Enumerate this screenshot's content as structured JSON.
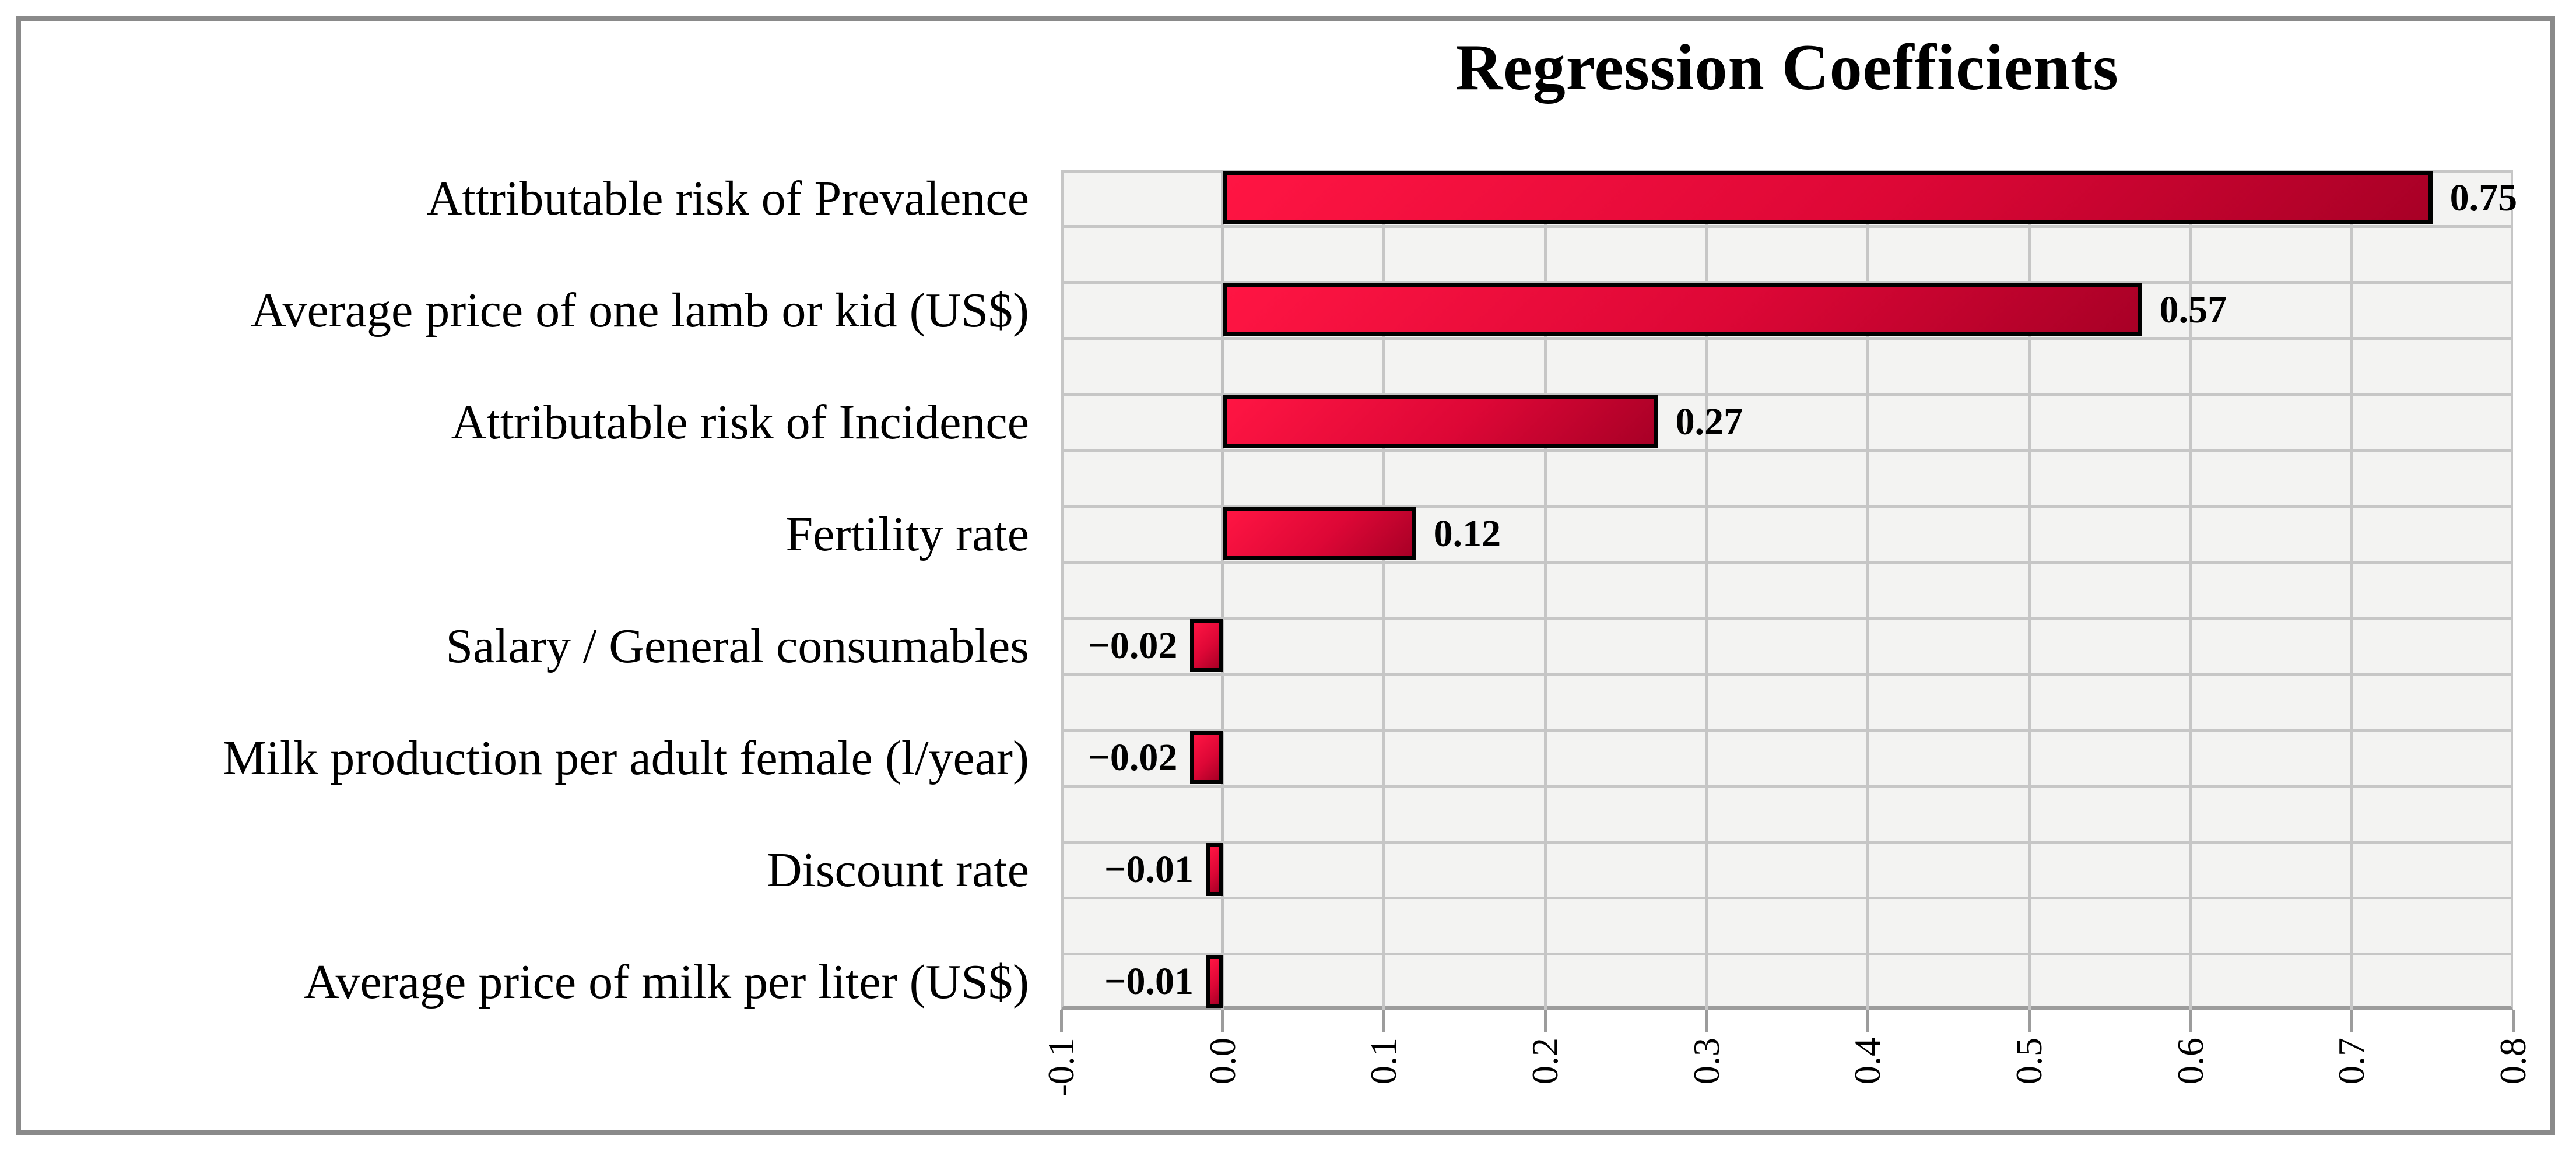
{
  "chart_data": {
    "type": "bar",
    "orientation": "horizontal",
    "title": "Regression Coefficients",
    "categories": [
      "Attributable risk of Prevalence",
      "Average price of one lamb or kid (US$)",
      "Attributable risk of Incidence",
      "Fertility rate",
      "Salary / General consumables",
      "Milk production per adult female (l/year)",
      "Discount rate",
      "Average price of milk per liter (US$)"
    ],
    "values": [
      0.75,
      0.57,
      0.27,
      0.12,
      -0.02,
      -0.02,
      -0.01,
      -0.01
    ],
    "value_labels": [
      "0.75",
      "0.57",
      "0.27",
      "0.12",
      "−0.02",
      "−0.02",
      "−0.01",
      "−0.01"
    ],
    "x_ticks": [
      "-0.1",
      "0.0",
      "0.1",
      "0.2",
      "0.3",
      "0.4",
      "0.5",
      "0.6",
      "0.7",
      "0.8"
    ],
    "x_tick_values": [
      -0.1,
      0.0,
      0.1,
      0.2,
      0.3,
      0.4,
      0.5,
      0.6,
      0.7,
      0.8
    ],
    "xlim": [
      -0.1,
      0.8
    ],
    "grid": true,
    "legend": false,
    "colors": {
      "bar_gradient_start": "#ff1543",
      "bar_gradient_mid": "#dd0736",
      "bar_gradient_end": "#a80026",
      "bar_border": "#000000",
      "plot_bg": "#f3f3f2",
      "gridline": "#c6c6c6",
      "zero_line": "#c0c0c0",
      "axis_line": "#9c9c9c",
      "frame": "#8a8a8a",
      "text": "#000000"
    }
  }
}
